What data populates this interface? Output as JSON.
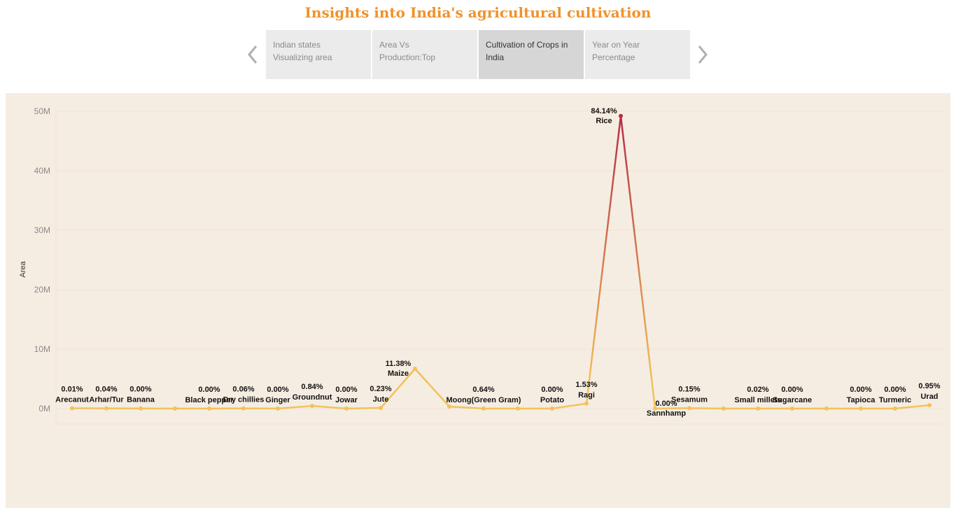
{
  "page_title": "Insights into India's agricultural cultivation",
  "nav": {
    "tabs": [
      {
        "label_line1": "Indian states",
        "label_line2": "Visualizing area",
        "active": false
      },
      {
        "label_line1": "Area Vs",
        "label_line2": "Production:Top",
        "active": false
      },
      {
        "label_line1": "Cultivation of Crops in",
        "label_line2": "India",
        "active": true
      },
      {
        "label_line1": "Year on Year",
        "label_line2": "Percentage",
        "active": false
      }
    ],
    "prev_icon": "chevron-left-icon",
    "next_icon": "chevron-right-icon"
  },
  "chart_data": {
    "type": "line",
    "title": "",
    "xlabel": "",
    "ylabel": "Area",
    "ylim": [
      0,
      50000000
    ],
    "y_ticks": [
      "0M",
      "10M",
      "20M",
      "30M",
      "40M",
      "50M"
    ],
    "y_tick_values": [
      0,
      10000000,
      20000000,
      30000000,
      40000000,
      50000000
    ],
    "grid": true,
    "color_low": "#f2c25c",
    "color_high": "#b52d45",
    "points": [
      {
        "crop": "Arecanut",
        "area": 60000,
        "pct": "0.01%",
        "labeled": true
      },
      {
        "crop": "Arhar/Tur",
        "area": 50000,
        "pct": "0.04%",
        "labeled": true
      },
      {
        "crop": "Banana",
        "area": 30000,
        "pct": "0.00%",
        "labeled": true
      },
      {
        "crop": "",
        "area": 20000,
        "pct": "",
        "labeled": false
      },
      {
        "crop": "Black pepper",
        "area": 20000,
        "pct": "0.00%",
        "labeled": true
      },
      {
        "crop": "Dry chillies",
        "area": 50000,
        "pct": "0.06%",
        "labeled": true
      },
      {
        "crop": "Ginger",
        "area": 20000,
        "pct": "0.00%",
        "labeled": true
      },
      {
        "crop": "Groundnut",
        "area": 450000,
        "pct": "0.84%",
        "labeled": true
      },
      {
        "crop": "Jowar",
        "area": 20000,
        "pct": "0.00%",
        "labeled": true
      },
      {
        "crop": "Jute",
        "area": 120000,
        "pct": "0.23%",
        "labeled": true
      },
      {
        "crop": "Maize",
        "area": 6700000,
        "pct": "11.38%",
        "labeled": true
      },
      {
        "crop": "",
        "area": 350000,
        "pct": "",
        "labeled": false
      },
      {
        "crop": "Moong(Green Gram)",
        "area": 20000,
        "pct": "0.64%",
        "labeled": true
      },
      {
        "crop": "",
        "area": 20000,
        "pct": "",
        "labeled": false
      },
      {
        "crop": "Potato",
        "area": 20000,
        "pct": "0.00%",
        "labeled": true
      },
      {
        "crop": "Ragi",
        "area": 850000,
        "pct": "1.53%",
        "labeled": true
      },
      {
        "crop": "Rice",
        "area": 49200000,
        "pct": "84.14%",
        "labeled": true
      },
      {
        "crop": "Sannhamp",
        "area": 20000,
        "pct": "0.00%",
        "labeled": true
      },
      {
        "crop": "Sesamum",
        "area": 80000,
        "pct": "0.15%",
        "labeled": true
      },
      {
        "crop": "",
        "area": 20000,
        "pct": "",
        "labeled": false
      },
      {
        "crop": "Small millets",
        "area": 20000,
        "pct": "0.02%",
        "labeled": true
      },
      {
        "crop": "Sugarcane",
        "area": 20000,
        "pct": "0.00%",
        "labeled": true
      },
      {
        "crop": "",
        "area": 20000,
        "pct": "",
        "labeled": false
      },
      {
        "crop": "Tapioca",
        "area": 20000,
        "pct": "0.00%",
        "labeled": true
      },
      {
        "crop": "Turmeric",
        "area": 20000,
        "pct": "0.00%",
        "labeled": true
      },
      {
        "crop": "Urad",
        "area": 580000,
        "pct": "0.95%",
        "labeled": true
      }
    ]
  }
}
